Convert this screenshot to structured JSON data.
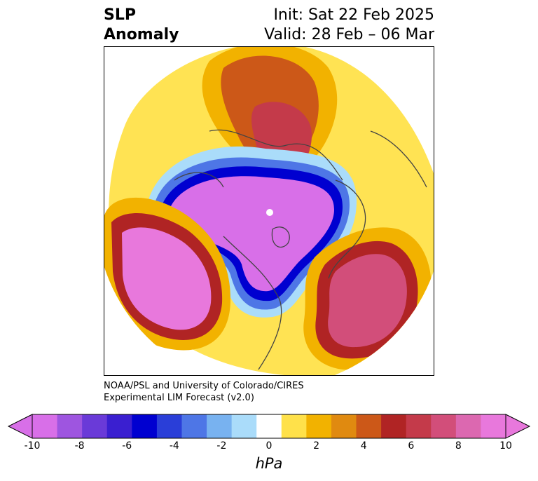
{
  "title": {
    "left_line1": "SLP",
    "left_line2": "Anomaly",
    "right_line1": "Init: Sat 22 Feb 2025",
    "right_line2": "Valid: 28 Feb – 06 Mar"
  },
  "credit": {
    "line1": "NOAA/PSL and University of Colorado/CIRES",
    "line2": "Experimental LIM Forecast (v2.0)"
  },
  "colorbar": {
    "unit_label": "hPa",
    "tick_labels": [
      "-10",
      "-8",
      "-6",
      "-4",
      "-2",
      "0",
      "2",
      "4",
      "6",
      "8",
      "10"
    ],
    "colors": [
      "#d86fe8",
      "#9e55e0",
      "#6a3ad8",
      "#3a1fd0",
      "#0000d0",
      "#2a3ed8",
      "#4e76e6",
      "#78b2f0",
      "#aadcfa",
      "#ffffff",
      "#ffe14a",
      "#f2b200",
      "#e08a10",
      "#cc5818",
      "#b02424",
      "#c43a4a",
      "#d24e7a",
      "#dc68b0",
      "#e878dc"
    ]
  },
  "map": {
    "projection": "north-polar-stereographic",
    "colors": {
      "strong_negative": "#d86fe8",
      "negative_core": "#0000d0",
      "positive_core": "#d24e7a",
      "coastline": "#444444"
    }
  }
}
